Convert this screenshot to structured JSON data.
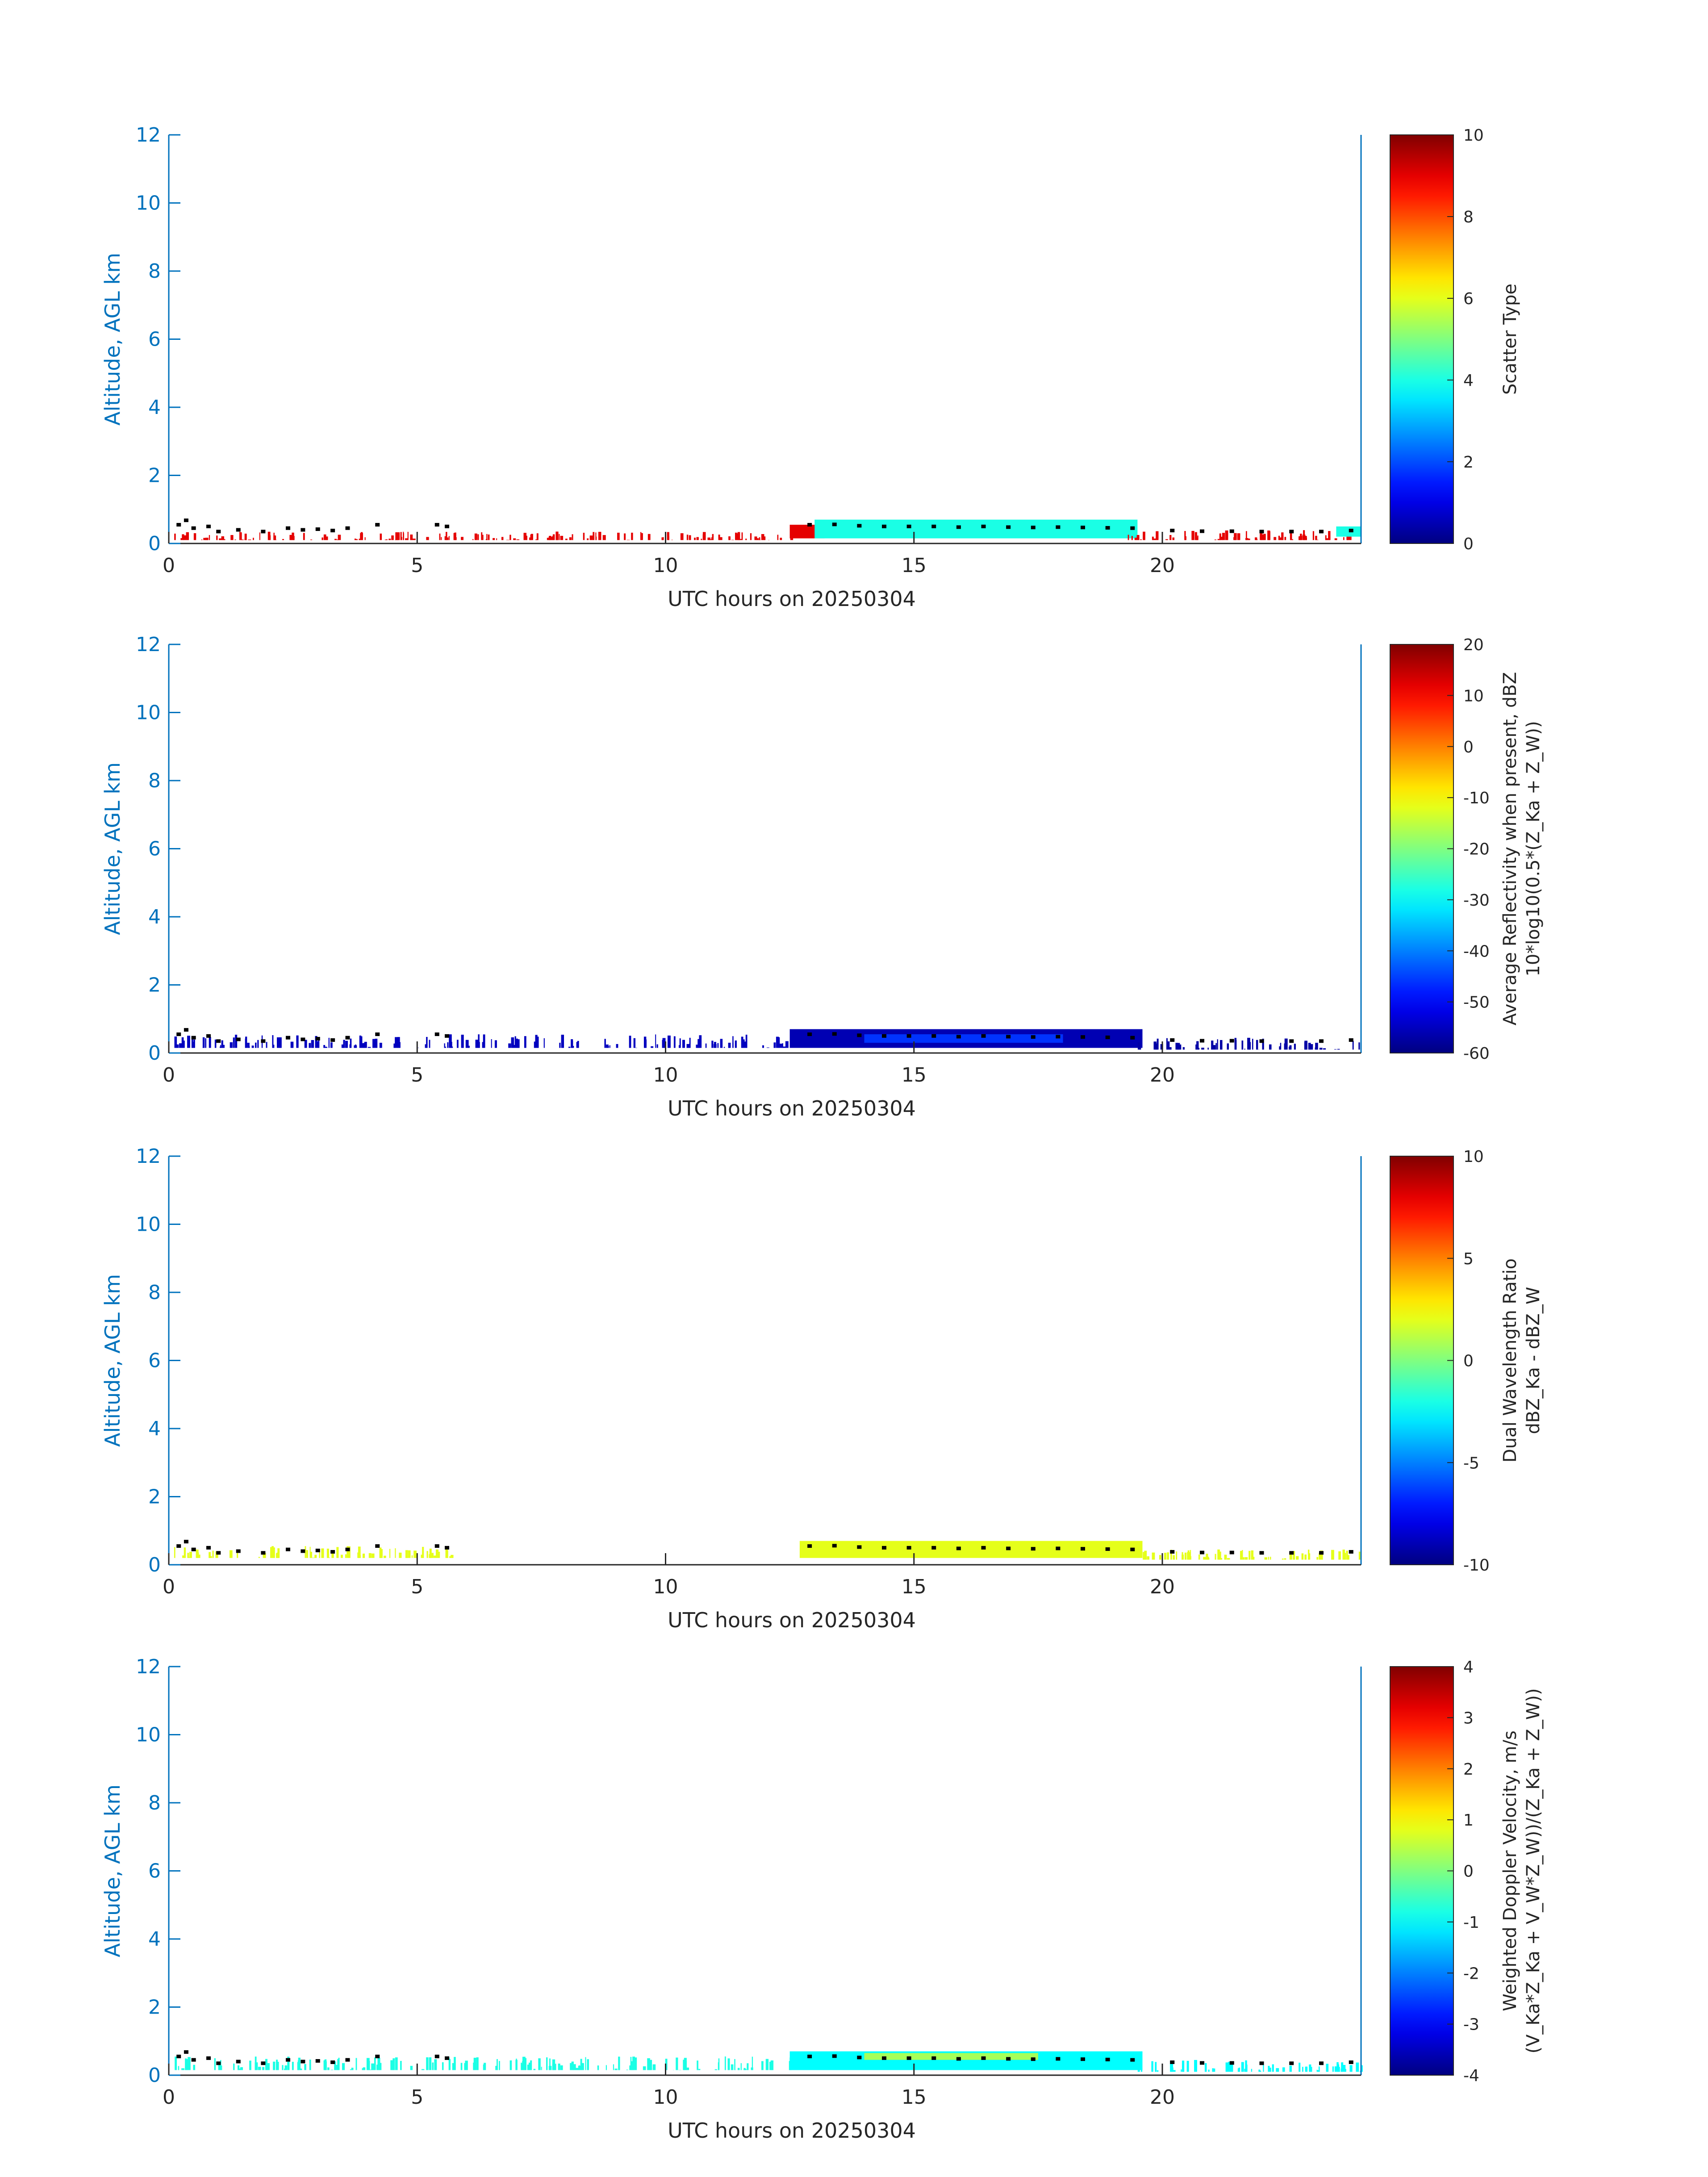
{
  "colors": {
    "y_axis": "#0072BD",
    "x_axis": "#262626",
    "background": "#ffffff",
    "colormap": "jet"
  },
  "chart_data": [
    {
      "type": "heatmap",
      "title": "",
      "xlabel": "UTC hours on 20250304",
      "ylabel": "Altitude, AGL km",
      "xlim": [
        0,
        24
      ],
      "ylim": [
        0,
        12
      ],
      "xticks": [
        0,
        5,
        10,
        15,
        20
      ],
      "yticks": [
        0,
        2,
        4,
        6,
        8,
        10,
        12
      ],
      "colorbar": {
        "label_lines": [
          "Scatter Type"
        ],
        "clim": [
          0,
          10
        ],
        "ticks": [
          "0",
          "2",
          "4",
          "6",
          "8",
          "10"
        ]
      },
      "features": [
        {
          "start": 0.1,
          "end": 12.6,
          "alt_low": 0.1,
          "alt_high": 0.35,
          "value": 9,
          "sparse": true
        },
        {
          "start": 12.5,
          "end": 13.2,
          "alt_low": 0.15,
          "alt_high": 0.55,
          "value": 9,
          "sparse": false
        },
        {
          "start": 13.0,
          "end": 19.5,
          "alt_low": 0.15,
          "alt_high": 0.7,
          "value": 4,
          "sparse": false
        },
        {
          "start": 19.3,
          "end": 24.0,
          "alt_low": 0.1,
          "alt_high": 0.4,
          "value": 9,
          "sparse": true
        },
        {
          "start": 23.5,
          "end": 24.0,
          "alt_low": 0.2,
          "alt_high": 0.5,
          "value": 4,
          "sparse": false
        }
      ]
    },
    {
      "type": "heatmap",
      "title": "",
      "xlabel": "UTC hours on 20250304",
      "ylabel": "Altitude, AGL km",
      "xlim": [
        0,
        24
      ],
      "ylim": [
        0,
        12
      ],
      "xticks": [
        0,
        5,
        10,
        15,
        20
      ],
      "yticks": [
        0,
        2,
        4,
        6,
        8,
        10,
        12
      ],
      "colorbar": {
        "label_lines": [
          "Average Reflectivity when present, dBZ",
          "10*log10(0.5*(Z_Ka + Z_W))"
        ],
        "clim": [
          -60,
          20
        ],
        "ticks": [
          "-60",
          "-50",
          "-40",
          "-30",
          "-20",
          "-10",
          "0",
          "10",
          "20"
        ]
      },
      "features": [
        {
          "start": 0.1,
          "end": 12.5,
          "alt_low": 0.15,
          "alt_high": 0.55,
          "value": -55,
          "sparse": true
        },
        {
          "start": 12.5,
          "end": 19.6,
          "alt_low": 0.15,
          "alt_high": 0.7,
          "value": -56,
          "sparse": false
        },
        {
          "start": 14.0,
          "end": 18.0,
          "alt_low": 0.3,
          "alt_high": 0.55,
          "value": -46,
          "sparse": false
        },
        {
          "start": 19.5,
          "end": 24.0,
          "alt_low": 0.1,
          "alt_high": 0.45,
          "value": -57,
          "sparse": true
        }
      ]
    },
    {
      "type": "heatmap",
      "title": "",
      "xlabel": "UTC hours on 20250304",
      "ylabel": "Altitude, AGL km",
      "xlim": [
        0,
        24
      ],
      "ylim": [
        0,
        12
      ],
      "xticks": [
        0,
        5,
        10,
        15,
        20
      ],
      "yticks": [
        0,
        2,
        4,
        6,
        8,
        10,
        12
      ],
      "colorbar": {
        "label_lines": [
          "Dual Wavelength Ratio",
          "dBZ_Ka - dBZ_W"
        ],
        "clim": [
          -10,
          10
        ],
        "ticks": [
          "-10",
          "-5",
          "0",
          "5",
          "10"
        ]
      },
      "features": [
        {
          "start": 0.1,
          "end": 5.8,
          "alt_low": 0.2,
          "alt_high": 0.55,
          "value": 2,
          "sparse": true
        },
        {
          "start": 12.7,
          "end": 19.6,
          "alt_low": 0.2,
          "alt_high": 0.7,
          "value": 2,
          "sparse": false
        },
        {
          "start": 19.6,
          "end": 24.0,
          "alt_low": 0.15,
          "alt_high": 0.45,
          "value": 2,
          "sparse": true
        }
      ]
    },
    {
      "type": "heatmap",
      "title": "",
      "xlabel": "UTC hours on 20250304",
      "ylabel": "Altitude, AGL km",
      "xlim": [
        0,
        24
      ],
      "ylim": [
        0,
        12
      ],
      "xticks": [
        0,
        5,
        10,
        15,
        20
      ],
      "yticks": [
        0,
        2,
        4,
        6,
        8,
        10,
        12
      ],
      "colorbar": {
        "label_lines": [
          "Weighted Doppler Velocity, m/s",
          "(V_Ka*Z_Ka + V_W*Z_W))/(Z_Ka + Z_W))"
        ],
        "clim": [
          -4,
          4
        ],
        "ticks": [
          "-4",
          "-3",
          "-2",
          "-1",
          "0",
          "1",
          "2",
          "3",
          "4"
        ]
      },
      "features": [
        {
          "start": 0.1,
          "end": 12.5,
          "alt_low": 0.15,
          "alt_high": 0.55,
          "value": -0.8,
          "sparse": true
        },
        {
          "start": 12.5,
          "end": 19.6,
          "alt_low": 0.15,
          "alt_high": 0.7,
          "value": -1.0,
          "sparse": false
        },
        {
          "start": 14.0,
          "end": 17.5,
          "alt_low": 0.45,
          "alt_high": 0.65,
          "value": 0.3,
          "sparse": false
        },
        {
          "start": 19.5,
          "end": 24.0,
          "alt_low": 0.1,
          "alt_high": 0.45,
          "value": -1.0,
          "sparse": true
        }
      ]
    }
  ],
  "overlay": {
    "color": "#000000",
    "description_points": [
      [
        0.2,
        0.55
      ],
      [
        0.35,
        0.68
      ],
      [
        0.5,
        0.45
      ],
      [
        0.8,
        0.5
      ],
      [
        1.0,
        0.35
      ],
      [
        1.4,
        0.4
      ],
      [
        1.9,
        0.35
      ],
      [
        2.4,
        0.45
      ],
      [
        2.7,
        0.4
      ],
      [
        3.0,
        0.42
      ],
      [
        3.3,
        0.38
      ],
      [
        3.6,
        0.45
      ],
      [
        4.2,
        0.55
      ],
      [
        5.4,
        0.55
      ],
      [
        5.6,
        0.5
      ],
      [
        12.9,
        0.55
      ],
      [
        13.4,
        0.56
      ],
      [
        13.9,
        0.52
      ],
      [
        14.4,
        0.5
      ],
      [
        14.9,
        0.5
      ],
      [
        15.4,
        0.5
      ],
      [
        15.9,
        0.48
      ],
      [
        16.4,
        0.5
      ],
      [
        16.9,
        0.48
      ],
      [
        17.4,
        0.47
      ],
      [
        17.9,
        0.48
      ],
      [
        18.4,
        0.47
      ],
      [
        18.9,
        0.46
      ],
      [
        19.4,
        0.45
      ],
      [
        20.2,
        0.38
      ],
      [
        20.8,
        0.36
      ],
      [
        21.4,
        0.36
      ],
      [
        22.0,
        0.35
      ],
      [
        22.6,
        0.35
      ],
      [
        23.2,
        0.35
      ],
      [
        23.8,
        0.38
      ]
    ]
  }
}
